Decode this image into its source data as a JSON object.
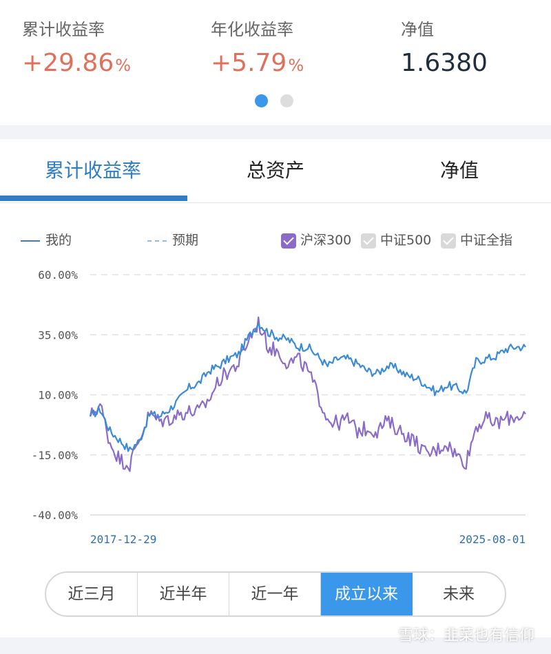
{
  "summary": {
    "cumulative": {
      "label": "累计收益率",
      "value": "+29.86",
      "unit": "%"
    },
    "annualized": {
      "label": "年化收益率",
      "value": "+5.79",
      "unit": "%"
    },
    "nav": {
      "label": "净值",
      "value": "1.6380"
    },
    "page_indicator": {
      "pages": 2,
      "active": 1
    }
  },
  "tabs": [
    {
      "label": "累计收益率",
      "active": true
    },
    {
      "label": "总资产",
      "active": false
    },
    {
      "label": "净值",
      "active": false
    }
  ],
  "legend": {
    "mine": "我的",
    "expected": "预期",
    "hs300": "沪深300",
    "zz500": "中证500",
    "zzall": "中证全指"
  },
  "chart_data": {
    "type": "line",
    "x_start": "2017-12-29",
    "x_end": "2025-08-01",
    "ylim": [
      -40,
      60
    ],
    "yticks": [
      "60.00%",
      "35.00%",
      "10.00%",
      "-15.00%",
      "-40.00%"
    ],
    "ytick_values": [
      60,
      35,
      10,
      -15,
      -40
    ],
    "grid": true,
    "colors": {
      "mine": "#3a8ad6",
      "hs300": "#8a6bc7"
    },
    "series": [
      {
        "name": "我的",
        "x": [
          "2017-12",
          "2018-03",
          "2018-06",
          "2018-09",
          "2018-12",
          "2019-02",
          "2019-04",
          "2019-06",
          "2019-08",
          "2019-10",
          "2019-12",
          "2020-02",
          "2020-04",
          "2020-06",
          "2020-08",
          "2020-10",
          "2020-12",
          "2021-02",
          "2021-04",
          "2021-06",
          "2021-08",
          "2021-10",
          "2021-12",
          "2022-02",
          "2022-04",
          "2022-06",
          "2022-08",
          "2022-10",
          "2022-12",
          "2023-02",
          "2023-04",
          "2023-06",
          "2023-08",
          "2023-10",
          "2023-12",
          "2024-02",
          "2024-04",
          "2024-06",
          "2024-08",
          "2024-10",
          "2024-12",
          "2025-02",
          "2025-04",
          "2025-06",
          "2025-08"
        ],
        "values": [
          1,
          4,
          -5,
          -9,
          -13,
          -9,
          2,
          1,
          4,
          8,
          13,
          15,
          20,
          22,
          25,
          27,
          34,
          40,
          36,
          34,
          33,
          30,
          30,
          26,
          22,
          25,
          25,
          23,
          20,
          19,
          22,
          21,
          18,
          17,
          14,
          11,
          14,
          13,
          11,
          24,
          25,
          26,
          29,
          30,
          29.86
        ]
      },
      {
        "name": "沪深300",
        "x": [
          "2017-12",
          "2018-03",
          "2018-06",
          "2018-09",
          "2018-12",
          "2019-02",
          "2019-04",
          "2019-06",
          "2019-08",
          "2019-10",
          "2019-12",
          "2020-02",
          "2020-04",
          "2020-06",
          "2020-08",
          "2020-10",
          "2020-12",
          "2021-02",
          "2021-04",
          "2021-06",
          "2021-08",
          "2021-10",
          "2021-12",
          "2022-02",
          "2022-04",
          "2022-06",
          "2022-08",
          "2022-10",
          "2022-12",
          "2023-02",
          "2023-04",
          "2023-06",
          "2023-08",
          "2023-10",
          "2023-12",
          "2024-02",
          "2024-04",
          "2024-06",
          "2024-08",
          "2024-10",
          "2024-12",
          "2025-02",
          "2025-04",
          "2025-06",
          "2025-08"
        ],
        "values": [
          1,
          6,
          -10,
          -17,
          -19,
          -8,
          2,
          -1,
          0,
          2,
          3,
          3,
          8,
          16,
          20,
          23,
          33,
          40,
          30,
          28,
          23,
          25,
          20,
          10,
          0,
          -2,
          0,
          -5,
          -4,
          -5,
          -1,
          -4,
          -7,
          -10,
          -15,
          -13,
          -10,
          -15,
          -18,
          -3,
          0,
          -2,
          0,
          1,
          2
        ]
      }
    ]
  },
  "range_buttons": [
    {
      "label": "近三月",
      "active": false
    },
    {
      "label": "近半年",
      "active": false
    },
    {
      "label": "近一年",
      "active": false
    },
    {
      "label": "成立以来",
      "active": true
    },
    {
      "label": "未来",
      "active": false
    }
  ],
  "watermark": "雪球：韭菜也有信仰"
}
